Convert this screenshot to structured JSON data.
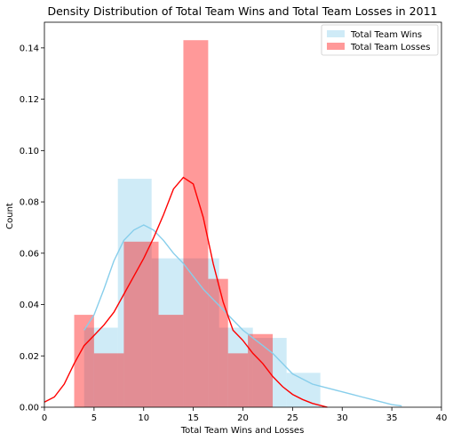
{
  "chart_data": {
    "type": "histogram",
    "title": "Density Distribution of Total Team Wins and Total Team Losses in 2011",
    "xlabel": "Total Team Wins and Losses",
    "ylabel": "Count",
    "xlim": [
      0,
      40
    ],
    "ylim": [
      0,
      0.15
    ],
    "xticks": [
      0,
      5,
      10,
      15,
      20,
      25,
      30,
      35,
      40
    ],
    "yticks": [
      0.0,
      0.02,
      0.04,
      0.06,
      0.08,
      0.1,
      0.12,
      0.14
    ],
    "ytick_labels": [
      "0.00",
      "0.02",
      "0.04",
      "0.06",
      "0.08",
      "0.10",
      "0.12",
      "0.14"
    ],
    "grid": false,
    "legend_position": "top-right",
    "series": [
      {
        "name": "Total Team Wins",
        "color": "#87ceeb",
        "bar_opacity": 0.4,
        "bins": [
          {
            "x0": 4,
            "x1": 7.4,
            "value": 0.031
          },
          {
            "x0": 7.4,
            "x1": 10.8,
            "value": 0.089
          },
          {
            "x0": 10.8,
            "x1": 14.2,
            "value": 0.058
          },
          {
            "x0": 14.2,
            "x1": 17.6,
            "value": 0.058
          },
          {
            "x0": 17.6,
            "x1": 21.0,
            "value": 0.031
          },
          {
            "x0": 21.0,
            "x1": 24.4,
            "value": 0.027
          },
          {
            "x0": 24.4,
            "x1": 27.8,
            "value": 0.0134
          }
        ],
        "kde": [
          [
            4,
            0.03
          ],
          [
            5,
            0.036
          ],
          [
            6,
            0.046
          ],
          [
            7,
            0.057
          ],
          [
            8,
            0.065
          ],
          [
            9,
            0.069
          ],
          [
            10,
            0.071
          ],
          [
            11,
            0.069
          ],
          [
            12,
            0.065
          ],
          [
            13,
            0.06
          ],
          [
            14,
            0.056
          ],
          [
            15,
            0.051
          ],
          [
            16,
            0.046
          ],
          [
            17,
            0.042
          ],
          [
            18,
            0.038
          ],
          [
            19,
            0.034
          ],
          [
            20,
            0.03
          ],
          [
            21,
            0.027
          ],
          [
            22,
            0.024
          ],
          [
            23,
            0.021
          ],
          [
            24,
            0.017
          ],
          [
            25,
            0.013
          ],
          [
            26,
            0.011
          ],
          [
            27,
            0.009
          ],
          [
            28,
            0.008
          ],
          [
            29,
            0.007
          ],
          [
            30,
            0.006
          ],
          [
            31,
            0.005
          ],
          [
            32,
            0.004
          ],
          [
            33,
            0.003
          ],
          [
            34,
            0.002
          ],
          [
            35,
            0.001
          ],
          [
            36,
            0.0005
          ]
        ]
      },
      {
        "name": "Total Team Losses",
        "color": "#ff0000",
        "bar_opacity": 0.4,
        "bins": [
          {
            "x0": 3.0,
            "x1": 5.0,
            "value": 0.036
          },
          {
            "x0": 5.0,
            "x1": 8.0,
            "value": 0.021
          },
          {
            "x0": 8.0,
            "x1": 11.5,
            "value": 0.0645
          },
          {
            "x0": 11.5,
            "x1": 14.0,
            "value": 0.036
          },
          {
            "x0": 14.0,
            "x1": 16.5,
            "value": 0.143
          },
          {
            "x0": 16.5,
            "x1": 18.5,
            "value": 0.05
          },
          {
            "x0": 18.5,
            "x1": 20.5,
            "value": 0.021
          },
          {
            "x0": 20.5,
            "x1": 23.0,
            "value": 0.0285
          }
        ],
        "kde": [
          [
            0,
            0.002
          ],
          [
            1,
            0.004
          ],
          [
            2,
            0.009
          ],
          [
            3,
            0.017
          ],
          [
            4,
            0.024
          ],
          [
            5,
            0.028
          ],
          [
            6,
            0.032
          ],
          [
            7,
            0.037
          ],
          [
            8,
            0.044
          ],
          [
            9,
            0.051
          ],
          [
            10,
            0.058
          ],
          [
            11,
            0.066
          ],
          [
            12,
            0.075
          ],
          [
            13,
            0.085
          ],
          [
            14,
            0.0895
          ],
          [
            15,
            0.087
          ],
          [
            16,
            0.074
          ],
          [
            17,
            0.056
          ],
          [
            18,
            0.041
          ],
          [
            19,
            0.03
          ],
          [
            20,
            0.026
          ],
          [
            21,
            0.021
          ],
          [
            22,
            0.017
          ],
          [
            23,
            0.012
          ],
          [
            24,
            0.008
          ],
          [
            25,
            0.005
          ],
          [
            26,
            0.003
          ],
          [
            27,
            0.0015
          ],
          [
            28,
            0.0005
          ],
          [
            28.5,
            0.0
          ]
        ]
      }
    ]
  }
}
